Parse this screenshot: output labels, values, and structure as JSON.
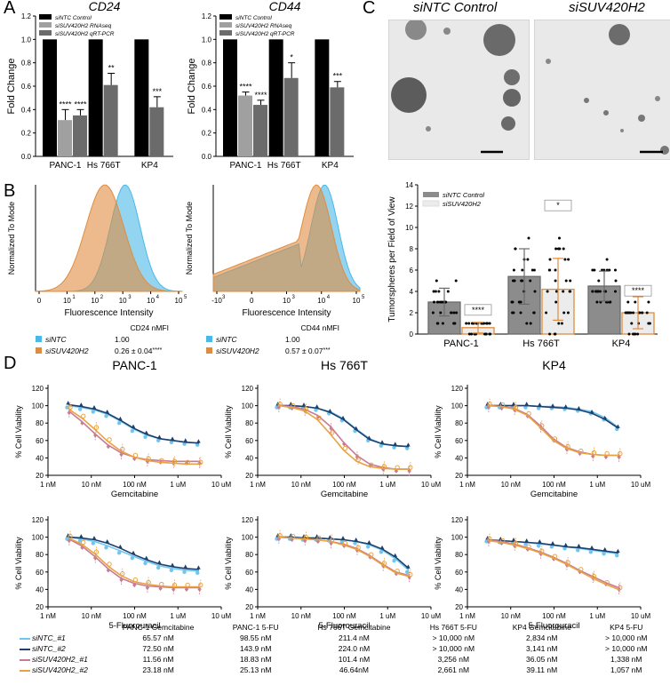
{
  "figure": {
    "panel_letters": [
      "A",
      "B",
      "C",
      "D"
    ],
    "colors": {
      "black": "#000000",
      "rnaseq": "#a0a0a0",
      "qrtpcr": "#6b6b6b",
      "blue": "#4bb8e8",
      "orange": "#e08c3f",
      "ntc1": "#6fc6ef",
      "ntc2": "#1f3f6d",
      "sisuv1": "#c87b93",
      "sisuv2": "#e9a23f",
      "bar_gray": "#8c8c8c",
      "bar_light": "#ececec"
    }
  },
  "panelA": {
    "charts": [
      {
        "title": "CD24"
      },
      {
        "title": "CD44"
      }
    ],
    "ylabel": "Fold Change",
    "legend": [
      "siNTC Control",
      "siSUV420H2 RNAseq",
      "siSUV420H2 qRT-PCR"
    ],
    "ticks": [
      "0.0",
      "0.2",
      "0.4",
      "0.6",
      "0.8",
      "1.0",
      "1.2"
    ]
  },
  "panelB": {
    "ylabel": "Normalized To Mode",
    "xlabel": "Fluorescence Intensity",
    "ticks_left": [
      "0",
      "10",
      "10",
      "10",
      "10",
      "10"
    ],
    "ticks_right": [
      "-10",
      "0",
      "10",
      "10",
      "10"
    ],
    "table_left": {
      "header": "CD24 nMFI",
      "rows": [
        {
          "name": "siNTC",
          "value": "1.00",
          "sig": ""
        },
        {
          "name": "siSUV420H2",
          "value": "0.26 ± 0.04",
          "sig": "****"
        }
      ]
    },
    "table_right": {
      "header": "CD44 nMFI",
      "rows": [
        {
          "name": "siNTC",
          "value": "1.00",
          "sig": ""
        },
        {
          "name": "siSUV420H2",
          "value": "0.57 ± 0.07",
          "sig": "***"
        }
      ]
    }
  },
  "panelC": {
    "photo_titles": [
      "siNTC Control",
      "siSUV420H2"
    ],
    "ylabel": "Tumorspheres per Field of View",
    "legend": [
      "siNTC Control",
      "siSUV420H2"
    ],
    "yticks": [
      "0",
      "2",
      "4",
      "6",
      "8",
      "10",
      "12",
      "14"
    ]
  },
  "panelD": {
    "column_titles": [
      "PANC-1",
      "Hs 766T",
      "KP4"
    ],
    "ylabel": "% Cell Viability",
    "xticks": [
      "1 nM",
      "10 nM",
      "100 nM",
      "1 uM",
      "10 uM"
    ],
    "yticks": [
      "20",
      "40",
      "60",
      "80",
      "100",
      "120"
    ],
    "row_xlabels": [
      "Gemcitabine",
      "5-Fluorouracil"
    ],
    "table": {
      "headers": [
        "",
        "PANC-1 Gemcitabine",
        "PANC-1  5-FU",
        "Hs 766T Gemcitabine",
        "Hs 766T  5-FU",
        "KP4 Gemcitabine",
        "KP4  5-FU"
      ],
      "rows": [
        {
          "name": "siNTC_#1",
          "values": [
            "65.57 nM",
            "98.55 nM",
            "211.4 nM",
            "> 10,000 nM",
            "2,834 nM",
            "> 10,000 nM"
          ]
        },
        {
          "name": "siNTC_#2",
          "values": [
            "72.50 nM",
            "143.9 nM",
            "224.0 nM",
            "> 10,000 nM",
            "3,141 nM",
            "> 10,000 nM"
          ]
        },
        {
          "name": "siSUV420H2_#1",
          "values": [
            "11.56 nM",
            "18.83 nM",
            "101.4 nM",
            "3,256 nM",
            "36.05 nM",
            "1,338 nM"
          ]
        },
        {
          "name": "siSUV420H2_#2",
          "values": [
            "23.18 nM",
            "25.13 nM",
            "46.64nM",
            "2,661 nM",
            "39.11 nM",
            "1,057 nM"
          ]
        }
      ]
    }
  },
  "chart_data": [
    {
      "type": "bar",
      "title": "CD24",
      "ylabel": "Fold Change",
      "ylim": [
        0,
        1.2
      ],
      "categories": [
        "PANC-1",
        "Hs 766T",
        "KP4"
      ],
      "series": [
        {
          "name": "siNTC Control",
          "values": [
            1.0,
            1.0,
            1.0
          ],
          "err": [
            0,
            0,
            0
          ],
          "sig": [
            "",
            "",
            ""
          ]
        },
        {
          "name": "siSUV420H2 RNAseq",
          "values": [
            0.31,
            0,
            0
          ],
          "err": [
            0.09,
            0,
            0
          ],
          "sig": [
            "****",
            "",
            ""
          ]
        },
        {
          "name": "siSUV420H2 qRT-PCR",
          "values": [
            0.35,
            0.61,
            0.42
          ],
          "err": [
            0.05,
            0.1,
            0.09
          ],
          "sig": [
            "****",
            "**",
            "***"
          ]
        }
      ]
    },
    {
      "type": "bar",
      "title": "CD44",
      "ylabel": "Fold Change",
      "ylim": [
        0,
        1.2
      ],
      "categories": [
        "PANC-1",
        "Hs 766T",
        "KP4"
      ],
      "series": [
        {
          "name": "siNTC Control",
          "values": [
            1.0,
            1.0,
            1.0
          ],
          "err": [
            0,
            0,
            0
          ],
          "sig": [
            "",
            "",
            ""
          ]
        },
        {
          "name": "siSUV420H2 RNAseq",
          "values": [
            0.52,
            0,
            0
          ],
          "err": [
            0.03,
            0,
            0
          ],
          "sig": [
            "****",
            "",
            ""
          ]
        },
        {
          "name": "siSUV420H2 qRT-PCR",
          "values": [
            0.44,
            0.67,
            0.59
          ],
          "err": [
            0.04,
            0.13,
            0.05
          ],
          "sig": [
            "****",
            "*",
            "***"
          ]
        }
      ]
    },
    {
      "type": "area",
      "xlabel": "Fluorescence Intensity",
      "ylabel": "Normalized To Mode",
      "series": [
        {
          "name": "siNTC",
          "peak_log10": 3.1
        },
        {
          "name": "siSUV420H2",
          "peak_log10": 2.3
        }
      ]
    },
    {
      "type": "area",
      "xlabel": "Fluorescence Intensity",
      "ylabel": "Normalized To Mode",
      "series": [
        {
          "name": "siNTC",
          "peak_log10": 3.9
        },
        {
          "name": "siSUV420H2",
          "peak_log10": 3.6
        }
      ]
    },
    {
      "type": "bar",
      "ylabel": "Tumorspheres per Field of View",
      "ylim": [
        0,
        14
      ],
      "categories": [
        "PANC-1",
        "Hs 766T",
        "KP4"
      ],
      "series": [
        {
          "name": "siNTC Control",
          "values": [
            3.0,
            5.4,
            4.5
          ],
          "err": [
            1.3,
            2.6,
            1.4
          ]
        },
        {
          "name": "siSUV420H2",
          "values": [
            0.6,
            4.2,
            2.0
          ],
          "err": [
            0.5,
            2.9,
            1.5
          ]
        }
      ],
      "sig": [
        "****",
        "*",
        "****"
      ]
    },
    {
      "type": "line",
      "title": "PANC-1",
      "xlabel": "Gemcitabine",
      "ylabel": "% Cell Viability",
      "ylim": [
        20,
        120
      ],
      "x": [
        "3 nM",
        "6 nM",
        "12 nM",
        "25 nM",
        "50 nM",
        "100 nM",
        "200 nM",
        "400 nM",
        "800 nM",
        "1.6 uM",
        "3.2 uM"
      ],
      "series": [
        {
          "name": "siNTC_#1",
          "values": [
            100,
            98,
            95,
            90,
            82,
            73,
            66,
            62,
            60,
            58,
            57
          ]
        },
        {
          "name": "siNTC_#2",
          "values": [
            101,
            99,
            96,
            91,
            83,
            74,
            67,
            62,
            60,
            58,
            57
          ]
        },
        {
          "name": "siSUV420H2_#1",
          "values": [
            94,
            82,
            68,
            55,
            46,
            41,
            38,
            37,
            36,
            36,
            36
          ]
        },
        {
          "name": "siSUV420H2_#2",
          "values": [
            96,
            86,
            73,
            59,
            48,
            41,
            37,
            35,
            34,
            33,
            33
          ]
        }
      ]
    },
    {
      "type": "line",
      "title": "Hs 766T",
      "xlabel": "Gemcitabine",
      "ylabel": "% Cell Viability",
      "ylim": [
        20,
        120
      ],
      "x": [
        "3 nM",
        "6 nM",
        "12 nM",
        "25 nM",
        "50 nM",
        "100 nM",
        "200 nM",
        "400 nM",
        "800 nM",
        "1.6 uM",
        "3.2 uM"
      ],
      "series": [
        {
          "name": "siNTC_#1",
          "values": [
            100,
            100,
            99,
            97,
            93,
            85,
            73,
            62,
            56,
            54,
            53
          ]
        },
        {
          "name": "siNTC_#2",
          "values": [
            100,
            100,
            99,
            97,
            92,
            84,
            72,
            61,
            56,
            54,
            53
          ]
        },
        {
          "name": "siSUV420H2_#1",
          "values": [
            100,
            99,
            96,
            89,
            76,
            58,
            43,
            33,
            29,
            27,
            27
          ]
        },
        {
          "name": "siSUV420H2_#2",
          "values": [
            100,
            98,
            94,
            84,
            67,
            49,
            36,
            30,
            28,
            27,
            27
          ]
        }
      ]
    },
    {
      "type": "line",
      "title": "KP4",
      "xlabel": "Gemcitabine",
      "ylabel": "% Cell Viability",
      "ylim": [
        20,
        120
      ],
      "x": [
        "3 nM",
        "6 nM",
        "12 nM",
        "25 nM",
        "50 nM",
        "100 nM",
        "200 nM",
        "400 nM",
        "800 nM",
        "1.6 uM",
        "3.2 uM"
      ],
      "series": [
        {
          "name": "siNTC_#1",
          "values": [
            100,
            100,
            100,
            100,
            99,
            99,
            98,
            96,
            93,
            86,
            75
          ]
        },
        {
          "name": "siNTC_#2",
          "values": [
            100,
            100,
            100,
            100,
            99,
            98,
            97,
            95,
            91,
            84,
            74
          ]
        },
        {
          "name": "siSUV420H2_#1",
          "values": [
            100,
            99,
            97,
            90,
            77,
            62,
            52,
            47,
            44,
            43,
            43
          ]
        },
        {
          "name": "siSUV420H2_#2",
          "values": [
            100,
            99,
            96,
            89,
            75,
            60,
            51,
            46,
            44,
            43,
            43
          ]
        }
      ]
    },
    {
      "type": "line",
      "title": "PANC-1",
      "xlabel": "5-Fluorouracil",
      "ylabel": "% Cell Viability",
      "ylim": [
        20,
        120
      ],
      "x": [
        "3 nM",
        "6 nM",
        "12 nM",
        "25 nM",
        "50 nM",
        "100 nM",
        "200 nM",
        "400 nM",
        "800 nM",
        "1.6 uM",
        "3.2 uM"
      ],
      "series": [
        {
          "name": "siNTC_#1",
          "values": [
            100,
            98,
            95,
            90,
            84,
            78,
            72,
            67,
            64,
            62,
            61
          ]
        },
        {
          "name": "siNTC_#2",
          "values": [
            100,
            99,
            97,
            93,
            87,
            80,
            74,
            69,
            66,
            64,
            63
          ]
        },
        {
          "name": "siSUV420H2_#1",
          "values": [
            98,
            90,
            78,
            64,
            53,
            47,
            44,
            43,
            42,
            42,
            42
          ]
        },
        {
          "name": "siSUV420H2_#2",
          "values": [
            99,
            92,
            81,
            67,
            56,
            49,
            46,
            44,
            43,
            43,
            43
          ]
        }
      ]
    },
    {
      "type": "line",
      "title": "Hs 766T",
      "xlabel": "5-Fluorouracil",
      "ylabel": "% Cell Viability",
      "ylim": [
        20,
        120
      ],
      "x": [
        "3 nM",
        "6 nM",
        "12 nM",
        "25 nM",
        "50 nM",
        "100 nM",
        "200 nM",
        "400 nM",
        "800 nM",
        "1.6 uM",
        "3.2 uM"
      ],
      "series": [
        {
          "name": "siNTC_#1",
          "values": [
            100,
            100,
            99,
            99,
            98,
            97,
            95,
            91,
            85,
            75,
            62
          ]
        },
        {
          "name": "siNTC_#2",
          "values": [
            100,
            100,
            99,
            99,
            98,
            97,
            95,
            92,
            86,
            77,
            64
          ]
        },
        {
          "name": "siSUV420H2_#1",
          "values": [
            100,
            99,
            98,
            97,
            95,
            92,
            87,
            79,
            69,
            60,
            56
          ]
        },
        {
          "name": "siSUV420H2_#2",
          "values": [
            100,
            99,
            98,
            97,
            95,
            91,
            86,
            78,
            68,
            59,
            55
          ]
        }
      ]
    },
    {
      "type": "line",
      "title": "KP4",
      "xlabel": "5-Fluorouracil",
      "ylabel": "% Cell Viability",
      "ylim": [
        20,
        120
      ],
      "x": [
        "3 nM",
        "6 nM",
        "12 nM",
        "25 nM",
        "50 nM",
        "100 nM",
        "200 nM",
        "400 nM",
        "800 nM",
        "1.6 uM",
        "3.2 uM"
      ],
      "series": [
        {
          "name": "siNTC_#1",
          "values": [
            97,
            96,
            95,
            94,
            92,
            91,
            89,
            87,
            85,
            83,
            81
          ]
        },
        {
          "name": "siNTC_#2",
          "values": [
            97,
            96,
            95,
            94,
            93,
            91,
            89,
            88,
            86,
            84,
            82
          ]
        },
        {
          "name": "siSUV420H2_#1",
          "values": [
            97,
            95,
            92,
            88,
            83,
            77,
            70,
            62,
            55,
            48,
            42
          ]
        },
        {
          "name": "siSUV420H2_#2",
          "values": [
            96,
            94,
            91,
            87,
            82,
            76,
            69,
            61,
            53,
            46,
            40
          ]
        }
      ]
    }
  ]
}
